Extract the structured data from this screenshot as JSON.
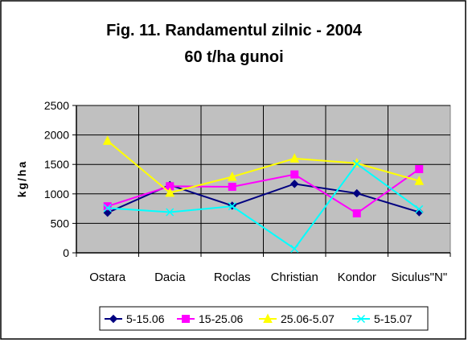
{
  "chart_data": {
    "type": "line",
    "title": "Fig. 11. Randamentul zilnic - 2004",
    "subtitle": "60 t/ha gunoi",
    "ylabel": "kg/ha",
    "xlabel": "",
    "categories": [
      "Ostara",
      "Dacia",
      "Roclas",
      "Christian",
      "Kondor",
      "Siculus\"N\""
    ],
    "ylim": [
      0,
      2500
    ],
    "yticks": [
      0,
      500,
      1000,
      1500,
      2000,
      2500
    ],
    "grid": true,
    "legend_position": "bottom",
    "plot_background": "#c0c0c0",
    "series": [
      {
        "name": "5-15.06",
        "color": "#000080",
        "marker": "diamond",
        "values": [
          680,
          1150,
          800,
          1170,
          1010,
          690
        ]
      },
      {
        "name": "15-25.06",
        "color": "#ff00ff",
        "marker": "square",
        "values": [
          790,
          1130,
          1120,
          1330,
          670,
          1420
        ]
      },
      {
        "name": "25.06-5.07",
        "color": "#ffff00",
        "marker": "triangle",
        "values": [
          1900,
          1020,
          1290,
          1600,
          1520,
          1220
        ]
      },
      {
        "name": "5-15.07",
        "color": "#00ffff",
        "marker": "x",
        "values": [
          760,
          690,
          790,
          70,
          1510,
          740
        ]
      }
    ]
  }
}
